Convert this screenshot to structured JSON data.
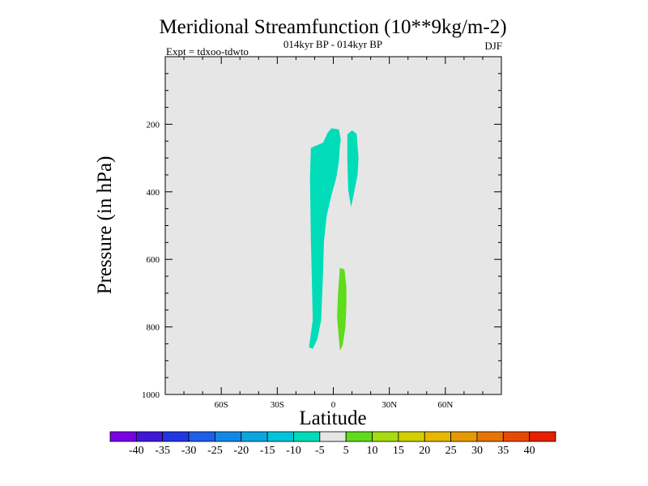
{
  "chart_data": {
    "type": "heatmap",
    "title": "Meridional Streamfunction (10**9kg/m-2)",
    "subtitle": "014kyr BP - 014kyr BP",
    "experiment_label": "Expt = tdxoo-tdwto",
    "season": "DJF",
    "xlabel": "Latitude",
    "ylabel": "Pressure (in hPa)",
    "xlim": [
      -90,
      90
    ],
    "ylim": [
      1000,
      0
    ],
    "x_ticks": [
      {
        "value": -60,
        "label": "60S"
      },
      {
        "value": -30,
        "label": "30S"
      },
      {
        "value": 0,
        "label": "0"
      },
      {
        "value": 30,
        "label": "30N"
      },
      {
        "value": 60,
        "label": "60N"
      }
    ],
    "y_ticks": [
      {
        "value": 200,
        "label": "200"
      },
      {
        "value": 400,
        "label": "400"
      },
      {
        "value": 600,
        "label": "600"
      },
      {
        "value": 800,
        "label": "800"
      },
      {
        "value": 1000,
        "label": "1000"
      }
    ],
    "background_color": "#e6e6e6",
    "colorbar": {
      "levels": [
        "-40",
        "-35",
        "-30",
        "-25",
        "-20",
        "-15",
        "-10",
        "-5",
        "5",
        "10",
        "15",
        "20",
        "25",
        "30",
        "35",
        "40"
      ],
      "colors": [
        "#7a00e6",
        "#3f17d8",
        "#2236e0",
        "#1f5ee6",
        "#1288e6",
        "#09a6e0",
        "#00c3dc",
        "#00dcb8",
        "#e6e6e6",
        "#5fdc1c",
        "#a6dc10",
        "#d2d000",
        "#e6b800",
        "#e69a00",
        "#e67400",
        "#e64a00",
        "#e62000"
      ]
    },
    "regions": [
      {
        "name": "negative-cell-main",
        "interval": "-10 to -5",
        "color": "#00dcb8",
        "polygon": [
          [
            -13,
            860
          ],
          [
            -11,
            780
          ],
          [
            -11.5,
            660
          ],
          [
            -12,
            540
          ],
          [
            -12.5,
            360
          ],
          [
            -12,
            270
          ],
          [
            -10,
            265
          ],
          [
            -5.5,
            255
          ],
          [
            -3,
            225
          ],
          [
            -1,
            212
          ],
          [
            3,
            215
          ],
          [
            4,
            245
          ],
          [
            3.5,
            265
          ],
          [
            3,
            310
          ],
          [
            1.5,
            360
          ],
          [
            -1,
            410
          ],
          [
            -3.5,
            470
          ],
          [
            -5,
            545
          ],
          [
            -5.5,
            640
          ],
          [
            -6.5,
            780
          ],
          [
            -8.5,
            835
          ],
          [
            -11,
            865
          ]
        ]
      },
      {
        "name": "negative-cell-upper-right",
        "interval": "-10 to -5",
        "color": "#00dcb8",
        "polygon": [
          [
            7.5,
            230
          ],
          [
            10,
            218
          ],
          [
            12.5,
            228
          ],
          [
            13.5,
            300
          ],
          [
            13,
            350
          ],
          [
            11,
            405
          ],
          [
            9.5,
            445
          ],
          [
            8,
            395
          ],
          [
            7.5,
            300
          ]
        ]
      },
      {
        "name": "positive-cell-lower",
        "interval": "5 to 10",
        "color": "#5fdc1c",
        "polygon": [
          [
            3,
            835
          ],
          [
            2,
            770
          ],
          [
            2.5,
            700
          ],
          [
            3.5,
            625
          ],
          [
            6,
            630
          ],
          [
            7,
            680
          ],
          [
            7,
            740
          ],
          [
            6.5,
            800
          ],
          [
            5,
            855
          ],
          [
            3.5,
            870
          ]
        ]
      }
    ]
  }
}
